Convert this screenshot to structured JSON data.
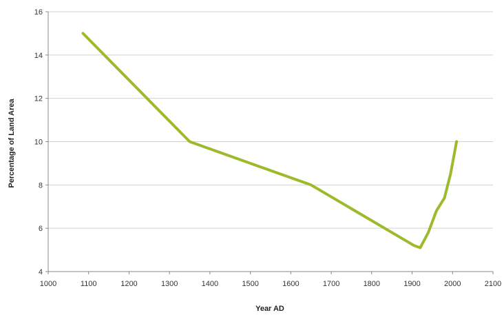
{
  "chart_data": {
    "type": "line",
    "title": "",
    "xlabel": "Year AD",
    "ylabel": "Percentage of Land Area",
    "xlim": [
      1000,
      2100
    ],
    "ylim": [
      4,
      16
    ],
    "xticks": [
      1000,
      1100,
      1200,
      1300,
      1400,
      1500,
      1600,
      1700,
      1800,
      1900,
      2000,
      2100
    ],
    "yticks": [
      4,
      6,
      8,
      10,
      12,
      14,
      16
    ],
    "grid": "horizontal",
    "series": [
      {
        "x": [
          1086,
          1350,
          1650,
          1905,
          1920,
          1940,
          1960,
          1980,
          1995,
          2010
        ],
        "y": [
          15,
          10,
          8,
          5.2,
          5.1,
          5.8,
          6.8,
          7.4,
          8.5,
          10
        ],
        "color": "#9cba2b"
      }
    ]
  }
}
